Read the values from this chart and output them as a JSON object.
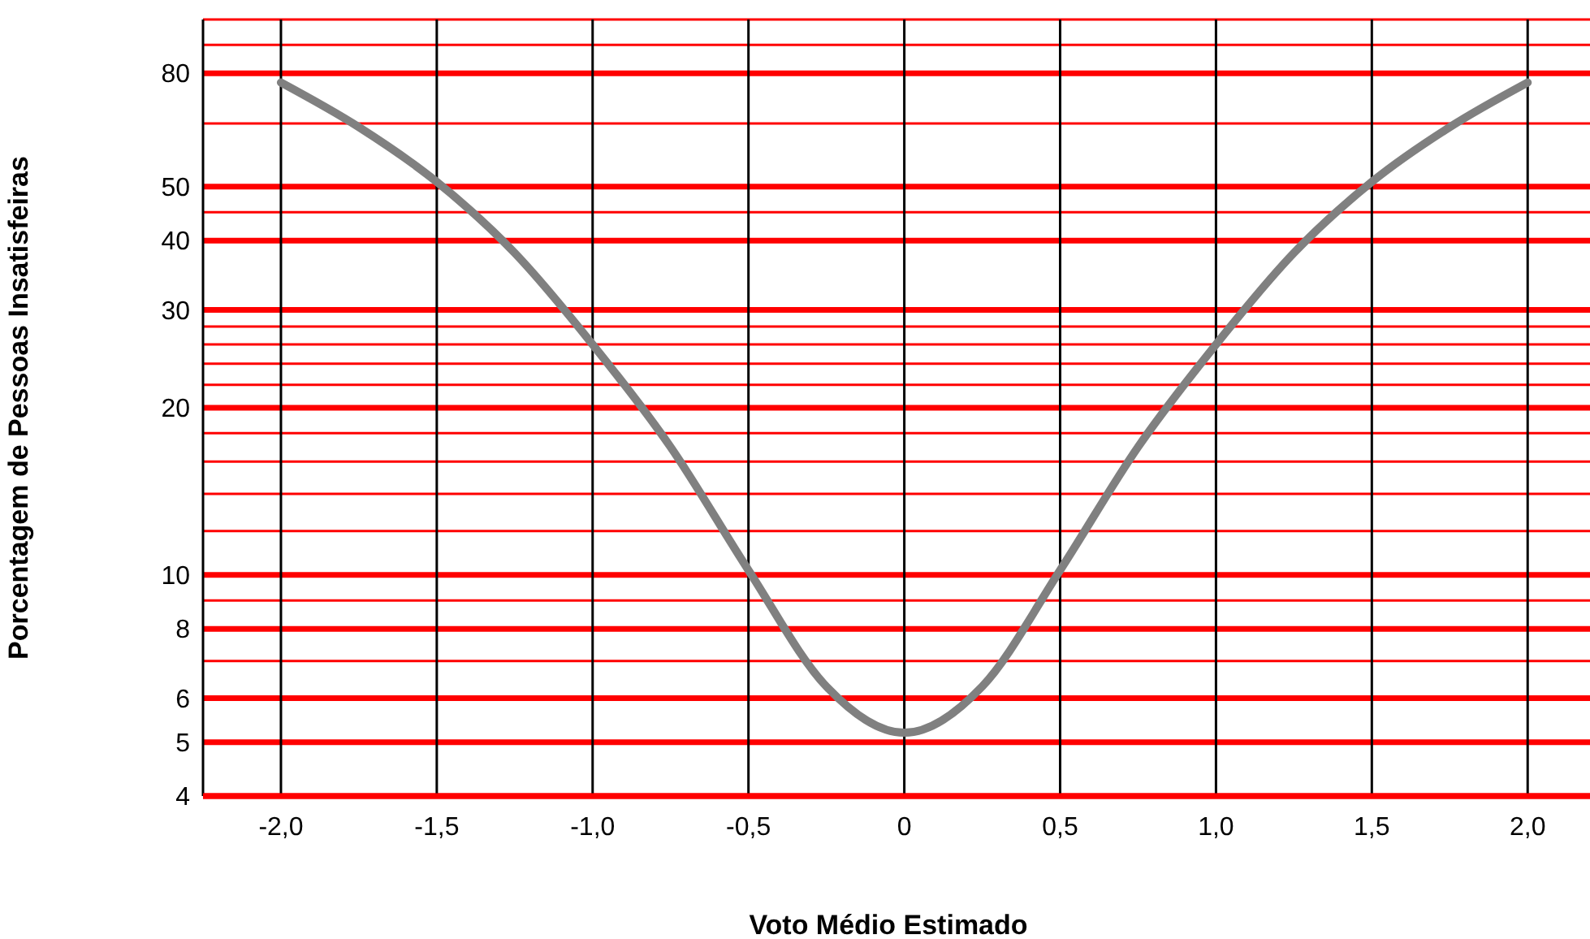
{
  "chart_data": {
    "type": "line",
    "xlabel": "Voto Médio Estimado",
    "ylabel": "Porcentagem de Pessoas Insatisfeiras",
    "x": [
      -2,
      -1.75,
      -1.5,
      -1.25,
      -1,
      -0.75,
      -0.5,
      -0.25,
      0,
      0.25,
      0.5,
      0.75,
      1,
      1.25,
      1.5,
      1.75,
      2
    ],
    "series": [
      {
        "color": "#808080",
        "values": [
          77,
          64,
          51,
          38,
          26,
          17,
          10.2,
          6.3,
          5.2,
          6.3,
          10.2,
          17,
          26,
          38,
          51,
          64,
          77
        ]
      }
    ],
    "log": "y",
    "xlim": [
      -2.25,
      2.2
    ],
    "ylim": [
      4,
      100
    ],
    "xticks": [
      {
        "value": -2,
        "label": "-2,0"
      },
      {
        "value": -1.5,
        "label": "-1,5"
      },
      {
        "value": -1,
        "label": "-1,0"
      },
      {
        "value": -0.5,
        "label": "-0,5"
      },
      0,
      {
        "value": 0.5,
        "label": "0,5"
      },
      {
        "value": 1,
        "label": "1,0"
      },
      {
        "value": 1.5,
        "label": "1,5"
      },
      {
        "value": 2,
        "label": "2,0"
      }
    ],
    "yticks": [
      4,
      5,
      6,
      {
        "value": 7,
        "label": null
      },
      8,
      {
        "value": 9,
        "label": null
      },
      10,
      {
        "value": 12,
        "label": null
      },
      {
        "value": 14,
        "label": null
      },
      {
        "value": 16,
        "label": null
      },
      {
        "value": 18,
        "label": null
      },
      20,
      {
        "value": 22,
        "label": null
      },
      {
        "value": 24,
        "label": null
      },
      {
        "value": 26,
        "label": null
      },
      {
        "value": 28,
        "label": null
      },
      30,
      40,
      {
        "value": 45,
        "label": null
      },
      50,
      {
        "value": 65,
        "label": null
      },
      80,
      {
        "value": 90,
        "label": null
      },
      {
        "value": 100,
        "label": null
      }
    ],
    "grid": true,
    "marker": "none",
    "line_style": "solid"
  }
}
